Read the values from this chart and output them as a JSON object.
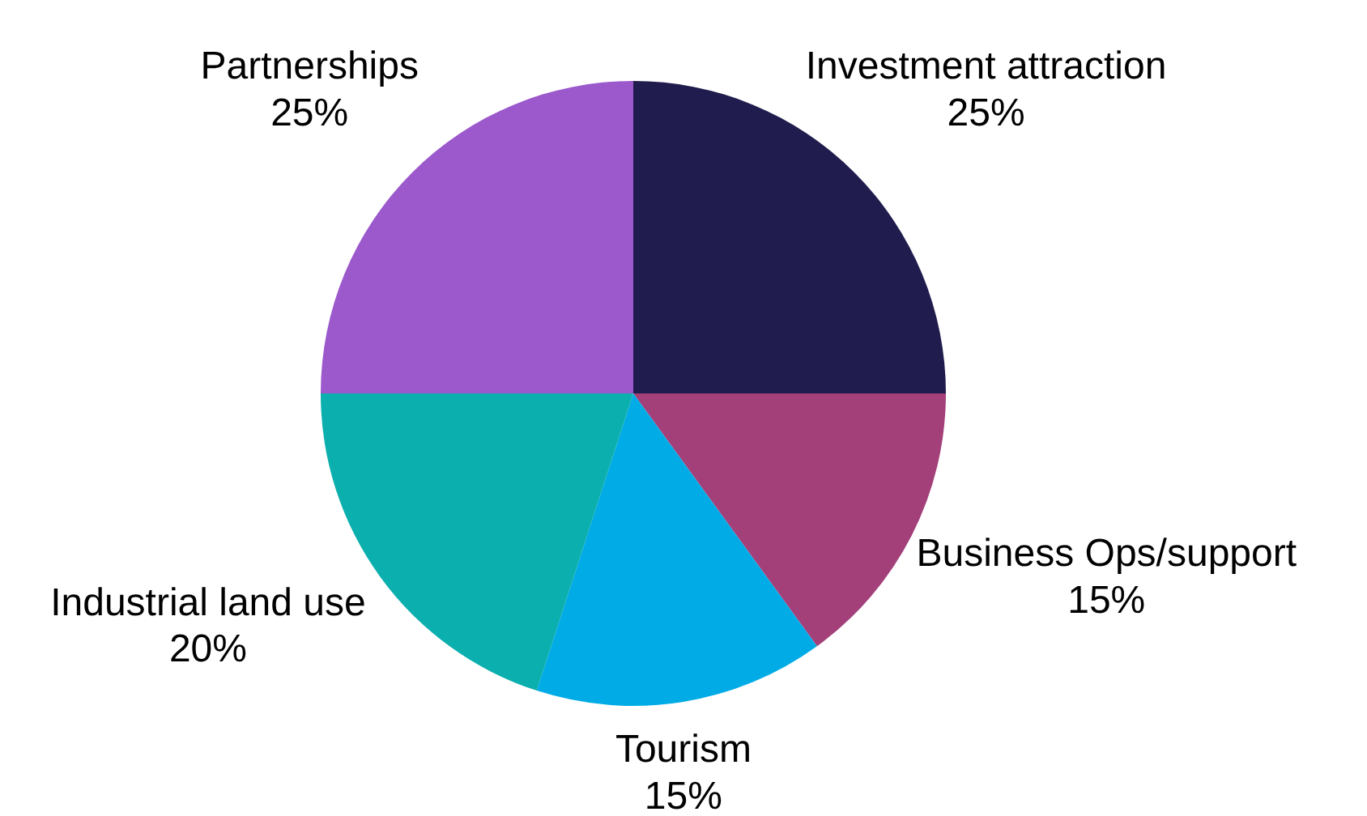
{
  "chart_data": {
    "type": "pie",
    "categories": [
      "Investment attraction",
      "Business Ops/support",
      "Tourism",
      "Industrial land use",
      "Partnerships"
    ],
    "values": [
      25,
      15,
      15,
      20,
      25
    ],
    "colors": [
      "#201d4e",
      "#a3407a",
      "#00abe6",
      "#0aafae",
      "#9b59cc"
    ],
    "value_labels": [
      "25%",
      "15%",
      "15%",
      "20%",
      "25%"
    ],
    "legend": false
  }
}
